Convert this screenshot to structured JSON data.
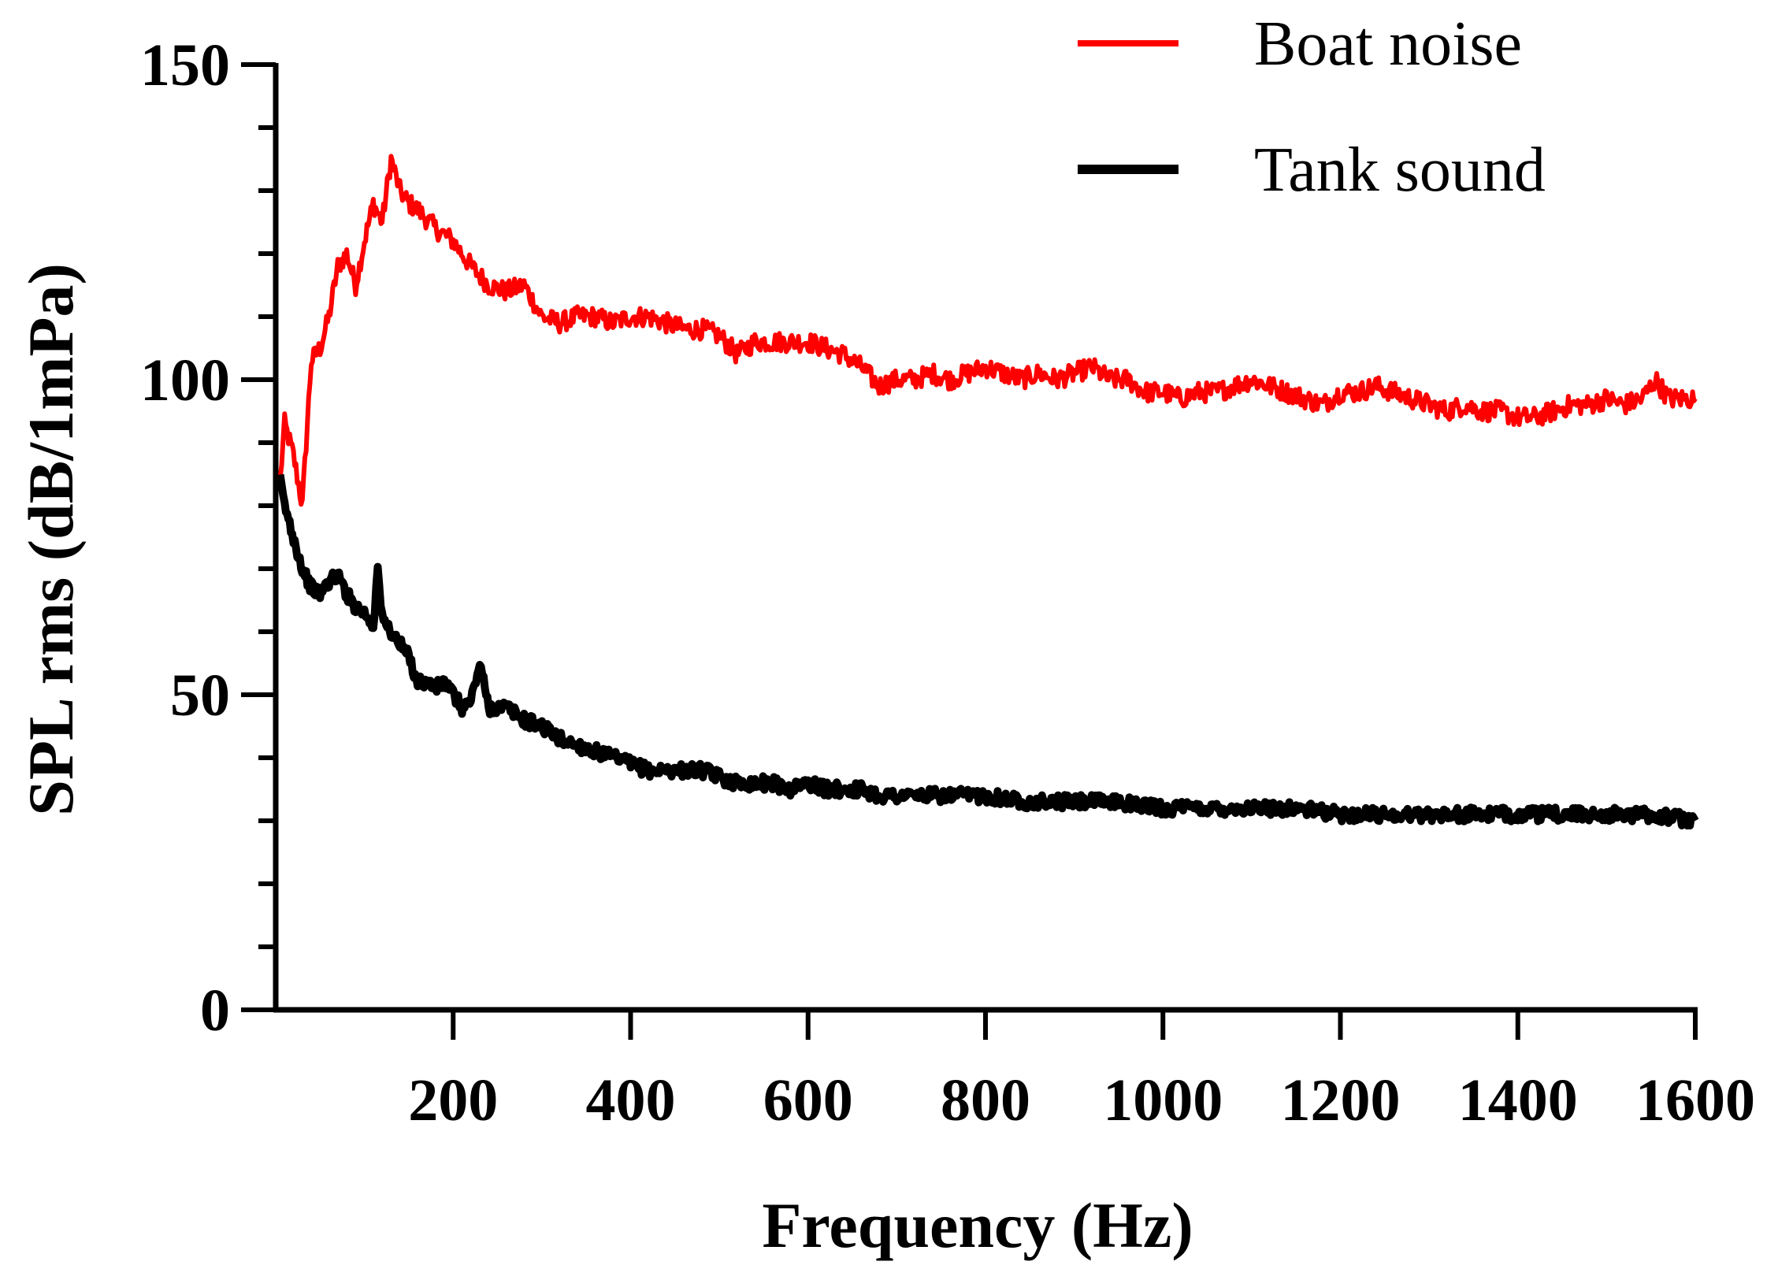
{
  "chart_data": {
    "type": "line",
    "title": "",
    "xlabel": "Frequency (Hz)",
    "ylabel": "SPL rms (dB/1mPa)",
    "xlim": [
      0,
      1600
    ],
    "ylim": [
      0,
      150
    ],
    "x_ticks": [
      200,
      400,
      600,
      800,
      1000,
      1200,
      1400,
      1600
    ],
    "x_tick_labels": [
      "200",
      "400",
      "600",
      "800",
      "1000",
      "1200",
      "1400",
      "1600"
    ],
    "y_ticks": [
      0,
      50,
      100,
      150
    ],
    "y_tick_labels": [
      "0",
      "50",
      "100",
      "150"
    ],
    "y_minor_step": 10,
    "grid": false,
    "legend_position": "top-right",
    "series": [
      {
        "name": "Boat noise",
        "color": "#ff0000",
        "x": [
          5,
          10,
          20,
          30,
          40,
          50,
          60,
          70,
          80,
          90,
          100,
          110,
          120,
          130,
          140,
          150,
          160,
          180,
          200,
          220,
          240,
          260,
          280,
          300,
          320,
          340,
          360,
          380,
          400,
          420,
          440,
          460,
          480,
          500,
          520,
          540,
          560,
          580,
          600,
          620,
          640,
          660,
          680,
          700,
          720,
          740,
          760,
          780,
          800,
          820,
          840,
          860,
          880,
          900,
          920,
          940,
          960,
          980,
          1000,
          1020,
          1040,
          1060,
          1080,
          1100,
          1120,
          1140,
          1160,
          1180,
          1200,
          1220,
          1240,
          1260,
          1280,
          1300,
          1320,
          1340,
          1360,
          1380,
          1400,
          1420,
          1440,
          1460,
          1480,
          1500,
          1520,
          1540,
          1555,
          1570,
          1585,
          1600
        ],
        "y": [
          84,
          93,
          88,
          80,
          103,
          105,
          110,
          118,
          120,
          115,
          122,
          128,
          125,
          135,
          130,
          128,
          127,
          124,
          122,
          118,
          115,
          114,
          115,
          110,
          109,
          110,
          110,
          109,
          110,
          110,
          109,
          108,
          108,
          107,
          104,
          106,
          106,
          106,
          106,
          105,
          104,
          102,
          99,
          100,
          100,
          101,
          100,
          101,
          102,
          101,
          100,
          101,
          100,
          101,
          102,
          100,
          100,
          98,
          98,
          97,
          98,
          98,
          99,
          100,
          99,
          98,
          97,
          96,
          98,
          98,
          99,
          98,
          97,
          96,
          95,
          96,
          95,
          95,
          94,
          94,
          95,
          96,
          96,
          97,
          96,
          97,
          100,
          97,
          97,
          97
        ]
      },
      {
        "name": "Tank sound",
        "color": "#000000",
        "x": [
          5,
          10,
          20,
          30,
          40,
          50,
          60,
          70,
          80,
          90,
          100,
          110,
          115,
          120,
          130,
          140,
          150,
          160,
          170,
          180,
          190,
          200,
          210,
          220,
          230,
          240,
          250,
          260,
          280,
          300,
          320,
          340,
          360,
          380,
          400,
          420,
          440,
          460,
          480,
          500,
          520,
          540,
          560,
          580,
          600,
          620,
          640,
          660,
          680,
          700,
          720,
          740,
          760,
          780,
          800,
          850,
          900,
          950,
          1000,
          1050,
          1100,
          1150,
          1200,
          1250,
          1300,
          1350,
          1400,
          1450,
          1500,
          1550,
          1600
        ],
        "y": [
          84,
          80,
          75,
          70,
          67,
          66,
          68,
          69,
          66,
          64,
          63,
          61,
          70,
          62,
          60,
          58,
          56,
          52,
          52,
          51,
          52,
          50,
          48,
          49,
          55,
          48,
          48,
          48,
          46,
          45,
          43,
          42,
          41,
          40,
          39,
          38,
          38,
          38,
          38,
          37,
          36,
          36,
          36,
          35,
          36,
          35,
          35,
          35,
          34,
          34,
          34,
          34,
          34,
          34,
          34,
          33,
          33,
          33,
          32,
          32,
          32,
          32,
          31,
          31,
          31,
          31,
          31,
          31,
          31,
          31,
          30
        ]
      }
    ]
  }
}
